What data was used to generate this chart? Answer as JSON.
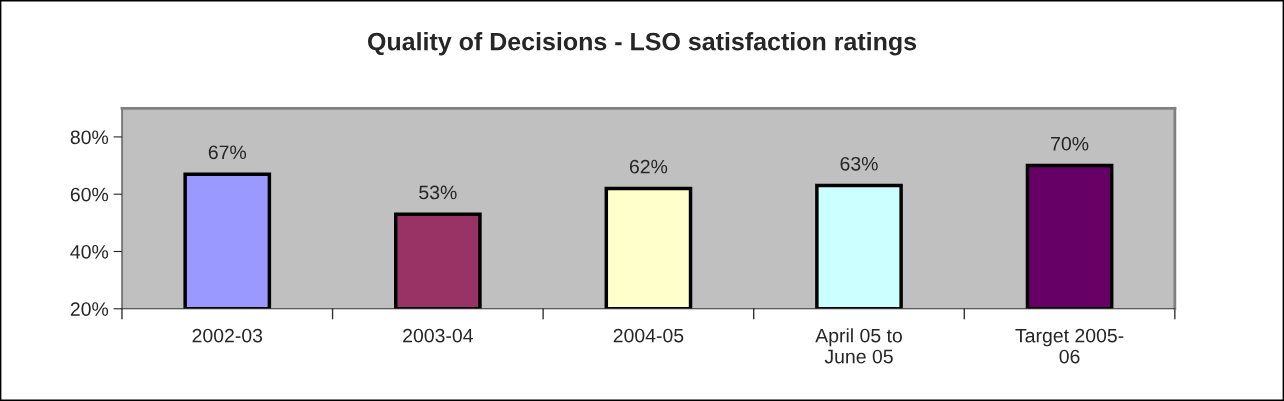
{
  "chart_data": {
    "type": "bar",
    "title": "Quality of Decisions - LSO satisfaction ratings",
    "categories": [
      "2002-03",
      "2003-04",
      "2004-05",
      "April 05 to\nJune 05",
      "Target 2005-\n06"
    ],
    "values": [
      67,
      53,
      62,
      63,
      70
    ],
    "colors": [
      "#9999ff",
      "#993366",
      "#ffffcc",
      "#ccffff",
      "#660066"
    ],
    "value_labels": [
      "67%",
      "53%",
      "62%",
      "63%",
      "70%"
    ],
    "ylim": [
      20,
      90
    ],
    "yticks": [
      {
        "value": 20,
        "label": "20%"
      },
      {
        "value": 40,
        "label": "40%"
      },
      {
        "value": 60,
        "label": "60%"
      },
      {
        "value": 80,
        "label": "80%"
      }
    ],
    "grid": false,
    "legend": false
  }
}
